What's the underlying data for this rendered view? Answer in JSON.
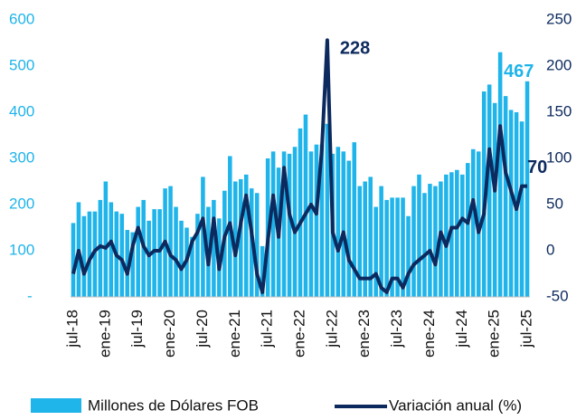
{
  "chart_data": {
    "type": "bar-line",
    "categories": [
      "jul-18",
      null,
      null,
      null,
      null,
      null,
      "ene-19",
      null,
      null,
      null,
      null,
      null,
      "jul-19",
      null,
      null,
      null,
      null,
      null,
      "ene-20",
      null,
      null,
      null,
      null,
      null,
      "jul-20",
      null,
      null,
      null,
      null,
      null,
      "ene-21",
      null,
      null,
      null,
      null,
      null,
      "jul-21",
      null,
      null,
      null,
      null,
      null,
      "ene-22",
      null,
      null,
      null,
      null,
      null,
      "jul-22",
      null,
      null,
      null,
      null,
      null,
      "ene-23",
      null,
      null,
      null,
      null,
      null,
      "jul-23",
      null,
      null,
      null,
      null,
      null,
      "ene-24",
      null,
      null,
      null,
      null,
      null,
      "jul-24",
      null,
      null,
      null,
      null,
      null,
      "ene-25",
      null,
      null,
      null,
      null,
      null,
      "jul-25"
    ],
    "series": [
      {
        "name": "Millones de Dólares FOB",
        "type": "bar",
        "color": "#1fb4ea",
        "values": [
          160,
          205,
          175,
          185,
          185,
          210,
          250,
          205,
          185,
          180,
          145,
          140,
          195,
          210,
          165,
          190,
          190,
          235,
          240,
          195,
          165,
          150,
          130,
          180,
          260,
          195,
          210,
          170,
          230,
          305,
          250,
          255,
          265,
          235,
          225,
          110,
          300,
          315,
          280,
          315,
          310,
          325,
          365,
          395,
          315,
          330,
          330,
          375,
          310,
          325,
          315,
          295,
          335,
          240,
          250,
          260,
          195,
          240,
          210,
          215,
          215,
          215,
          175,
          240,
          265,
          225,
          245,
          240,
          250,
          265,
          270,
          275,
          265,
          290,
          320,
          315,
          445,
          460,
          420,
          530,
          435,
          405,
          400,
          380,
          467
        ]
      },
      {
        "name": "Variación anual (%)",
        "type": "line",
        "axis": "y2",
        "color": "#0d2a5e",
        "values": [
          -25,
          0,
          -25,
          -10,
          0,
          5,
          3,
          10,
          -5,
          -10,
          -25,
          5,
          25,
          5,
          -5,
          0,
          0,
          10,
          -5,
          -10,
          -20,
          -10,
          10,
          20,
          35,
          -15,
          35,
          -20,
          15,
          30,
          -5,
          30,
          60,
          20,
          -25,
          -45,
          10,
          60,
          15,
          90,
          40,
          20,
          30,
          40,
          50,
          40,
          110,
          228,
          20,
          0,
          20,
          -10,
          -20,
          -30,
          -30,
          -30,
          -25,
          -40,
          -45,
          -30,
          -30,
          -40,
          -25,
          -15,
          -10,
          -5,
          0,
          -15,
          20,
          5,
          25,
          25,
          35,
          30,
          55,
          20,
          40,
          110,
          65,
          135,
          85,
          65,
          45,
          70,
          70
        ]
      }
    ],
    "ylim": [
      0,
      600
    ],
    "yticks": [
      {
        "value": 0,
        "label": "-"
      },
      100,
      200,
      300,
      400,
      500,
      600
    ],
    "y2lim": [
      -50,
      250
    ],
    "y2ticks": [
      -50,
      0,
      50,
      100,
      150,
      200,
      250
    ]
  }
}
